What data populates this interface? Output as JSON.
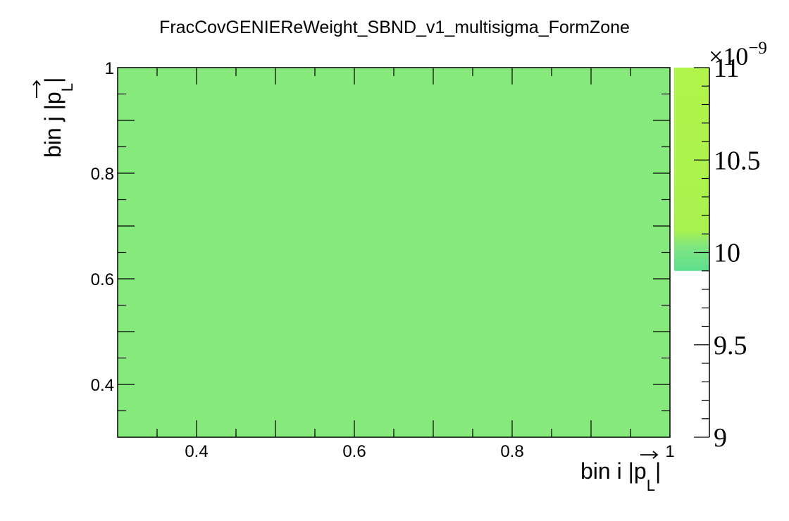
{
  "chart_data": {
    "type": "heatmap",
    "title": "FracCovGENIEReWeight_SBND_v1_multisigma_FormZone",
    "xlabel": "bin i |p_L|",
    "ylabel": "bin j |p_L|",
    "xlabel_parts": {
      "prefix": "bin i |",
      "var": "p",
      "sub": "L",
      "suffix": "|"
    },
    "ylabel_parts": {
      "prefix": "bin j |",
      "var": "p",
      "sub": "L",
      "suffix": "|"
    },
    "xlim": [
      0.3,
      1.0
    ],
    "ylim": [
      0.3,
      1.0
    ],
    "x_tick_labels": [
      "0.4",
      "0.6",
      "0.8",
      "1"
    ],
    "y_tick_labels": [
      "0.4",
      "0.6",
      "0.8",
      "1"
    ],
    "x_ticks": [
      0.4,
      0.6,
      0.8,
      1.0
    ],
    "y_ticks": [
      0.4,
      0.6,
      0.8,
      1.0
    ],
    "cells": [
      {
        "x": [
          0.3,
          1.0
        ],
        "y": [
          0.3,
          1.0
        ],
        "value": 1e-08
      }
    ],
    "colorbar": {
      "zlim": [
        9.0,
        11.0
      ],
      "exponent_label": "×10",
      "exponent": "−9",
      "tick_labels": [
        "9",
        "9.5",
        "10",
        "10.5",
        "11"
      ],
      "ticks": [
        9.0,
        9.5,
        10.0,
        10.5,
        11.0
      ],
      "filled_from": 9.9,
      "low_color": "#5ddf8e",
      "mid_color": "#86e97c",
      "high_color": "#b2f54a"
    },
    "cell_color": "#86e97c",
    "grid": false,
    "legend": "none"
  }
}
